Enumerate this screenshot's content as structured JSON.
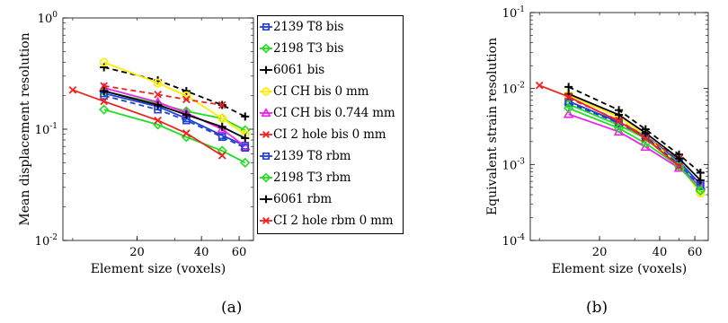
{
  "chart_data": [
    {
      "panel": "a",
      "type": "line",
      "xscale": "log",
      "yscale": "log",
      "xlabel": "Element size (voxels)",
      "ylabel": "Mean displacement resolution",
      "x_ticks": [
        20,
        40,
        60
      ],
      "y_ticks": [
        {
          "value": 0.01,
          "base": "10",
          "exp": "-2"
        },
        {
          "value": 0.1,
          "base": "10",
          "exp": "-1"
        },
        {
          "value": 1,
          "base": "10",
          "exp": "0"
        }
      ],
      "xlim": [
        9,
        70
      ],
      "ylim": [
        0.01,
        1
      ],
      "series": [
        {
          "name": "2139 T8 bis",
          "color": "#1f3fd6",
          "marker": "square",
          "dash": false,
          "x": [
            14,
            25,
            34,
            50,
            64
          ],
          "y": [
            0.21,
            0.16,
            0.125,
            0.088,
            0.071
          ]
        },
        {
          "name": "2198 T3 bis",
          "color": "#22dd22",
          "marker": "diamond",
          "dash": false,
          "x": [
            14,
            25,
            34,
            50,
            64
          ],
          "y": [
            0.22,
            0.17,
            0.145,
            0.125,
            0.098
          ]
        },
        {
          "name": "6061 bis",
          "color": "#000000",
          "marker": "plus",
          "dash": true,
          "x": [
            14,
            25,
            34,
            50,
            64
          ],
          "y": [
            0.36,
            0.275,
            0.22,
            0.165,
            0.13
          ]
        },
        {
          "name": "CI CH bis 0 mm",
          "color": "#ffee00",
          "marker": "circle",
          "dash": false,
          "x": [
            14,
            25,
            34,
            50,
            64
          ],
          "y": [
            0.4,
            0.26,
            0.2,
            0.125,
            0.09
          ]
        },
        {
          "name": "CI CH bis 0.744 mm",
          "color": "#ee22ee",
          "marker": "triangle",
          "dash": false,
          "x": [
            14,
            25,
            34,
            50,
            64
          ],
          "y": [
            0.235,
            0.175,
            0.14,
            0.1,
            0.07
          ]
        },
        {
          "name": "CI 2 hole bis 0 mm",
          "color": "#ee2222",
          "marker": "x",
          "dash": true,
          "x": [
            14,
            25,
            34,
            50
          ],
          "y": [
            0.245,
            0.205,
            0.185,
            0.165
          ]
        },
        {
          "name": "2139 T8 rbm",
          "color": "#1f3fd6",
          "marker": "square",
          "dash": true,
          "x": [
            14,
            25,
            34,
            50,
            64
          ],
          "y": [
            0.2,
            0.15,
            0.12,
            0.085,
            0.068
          ]
        },
        {
          "name": "2198 T3 rbm",
          "color": "#22dd22",
          "marker": "diamond",
          "dash": false,
          "x": [
            14,
            25,
            34,
            50,
            64
          ],
          "y": [
            0.15,
            0.11,
            0.085,
            0.064,
            0.05
          ]
        },
        {
          "name": "6061 rbm",
          "color": "#000000",
          "marker": "plus",
          "dash": false,
          "x": [
            14,
            25,
            34,
            50,
            64
          ],
          "y": [
            0.22,
            0.165,
            0.135,
            0.105,
            0.083
          ]
        },
        {
          "name": "CI 2 hole rbm 0 mm",
          "color": "#ee2222",
          "marker": "x",
          "dash": false,
          "x": [
            10,
            14,
            25,
            34,
            50
          ],
          "y": [
            0.225,
            0.178,
            0.12,
            0.092,
            0.058
          ]
        }
      ]
    },
    {
      "panel": "b",
      "type": "line",
      "xscale": "log",
      "yscale": "log",
      "xlabel": "Element size (voxels)",
      "ylabel": "Equivalent strain resolution",
      "x_ticks": [
        20,
        40,
        60
      ],
      "y_ticks": [
        {
          "value": 0.0001,
          "base": "10",
          "exp": "-4"
        },
        {
          "value": 0.001,
          "base": "10",
          "exp": "-3"
        },
        {
          "value": 0.01,
          "base": "10",
          "exp": "-2"
        },
        {
          "value": 0.1,
          "base": "10",
          "exp": "-1"
        }
      ],
      "xlim": [
        9,
        70
      ],
      "ylim": [
        0.0001,
        0.1
      ],
      "series": [
        {
          "name": "2139 T8 bis",
          "color": "#1f3fd6",
          "marker": "square",
          "dash": false,
          "x": [
            14,
            25,
            34,
            50,
            64
          ],
          "y": [
            0.0068,
            0.0036,
            0.0024,
            0.0011,
            0.00055
          ]
        },
        {
          "name": "2198 T3 bis",
          "color": "#22dd22",
          "marker": "diamond",
          "dash": false,
          "x": [
            14,
            25,
            34,
            50,
            64
          ],
          "y": [
            0.0062,
            0.0033,
            0.0022,
            0.00105,
            0.00048
          ]
        },
        {
          "name": "6061 bis",
          "color": "#000000",
          "marker": "plus",
          "dash": true,
          "x": [
            14,
            25,
            34,
            50,
            64
          ],
          "y": [
            0.0105,
            0.0052,
            0.0029,
            0.00135,
            0.00078
          ]
        },
        {
          "name": "CI CH bis 0 mm",
          "color": "#ffee00",
          "marker": "circle",
          "dash": false,
          "x": [
            14,
            25,
            34,
            50,
            64
          ],
          "y": [
            0.0082,
            0.0042,
            0.0024,
            0.001,
            0.00042
          ]
        },
        {
          "name": "CI CH bis 0.744 mm",
          "color": "#ee22ee",
          "marker": "triangle",
          "dash": false,
          "x": [
            14,
            25,
            34,
            50,
            64
          ],
          "y": [
            0.0046,
            0.0027,
            0.0017,
            0.0009,
            0.00052
          ]
        },
        {
          "name": "CI 2 hole bis 0 mm",
          "color": "#ee2222",
          "marker": "x",
          "dash": true,
          "x": [
            14,
            25,
            34,
            50
          ],
          "y": [
            0.0075,
            0.0038,
            0.0023,
            0.0012
          ]
        },
        {
          "name": "2139 T8 rbm",
          "color": "#1f3fd6",
          "marker": "square",
          "dash": true,
          "x": [
            14,
            25,
            34,
            50,
            64
          ],
          "y": [
            0.0065,
            0.0035,
            0.0023,
            0.001,
            0.00052
          ]
        },
        {
          "name": "2198 T3 rbm",
          "color": "#22dd22",
          "marker": "diamond",
          "dash": false,
          "x": [
            14,
            25,
            34,
            50,
            64
          ],
          "y": [
            0.0055,
            0.003,
            0.0019,
            0.00095,
            0.00045
          ]
        },
        {
          "name": "6061 rbm",
          "color": "#000000",
          "marker": "plus",
          "dash": false,
          "x": [
            14,
            25,
            34,
            50,
            64
          ],
          "y": [
            0.0085,
            0.0045,
            0.0026,
            0.0012,
            0.00062
          ]
        },
        {
          "name": "CI 2 hole rbm 0 mm",
          "color": "#ee2222",
          "marker": "x",
          "dash": false,
          "x": [
            10,
            14,
            25,
            34,
            50
          ],
          "y": [
            0.011,
            0.0078,
            0.0037,
            0.0022,
            0.00095
          ]
        }
      ]
    }
  ],
  "legend_items": [
    {
      "label": "2139 T8 bis",
      "color": "#1f3fd6",
      "marker": "square"
    },
    {
      "label": "2198 T3 bis",
      "color": "#22dd22",
      "marker": "diamond"
    },
    {
      "label": "6061 bis",
      "color": "#000000",
      "marker": "plus"
    },
    {
      "label": "CI CH bis 0 mm",
      "color": "#ffee00",
      "marker": "circle"
    },
    {
      "label": "CI CH bis 0.744 mm",
      "color": "#ee22ee",
      "marker": "triangle"
    },
    {
      "label": "CI 2 hole bis 0 mm",
      "color": "#ee2222",
      "marker": "x"
    },
    {
      "label": "2139 T8 rbm",
      "color": "#1f3fd6",
      "marker": "square"
    },
    {
      "label": "2198 T3 rbm",
      "color": "#22dd22",
      "marker": "diamond"
    },
    {
      "label": "6061 rbm",
      "color": "#000000",
      "marker": "plus"
    },
    {
      "label": "CI 2 hole rbm 0 mm",
      "color": "#ee2222",
      "marker": "x"
    }
  ],
  "captions": {
    "a": "(a)",
    "b": "(b)"
  }
}
